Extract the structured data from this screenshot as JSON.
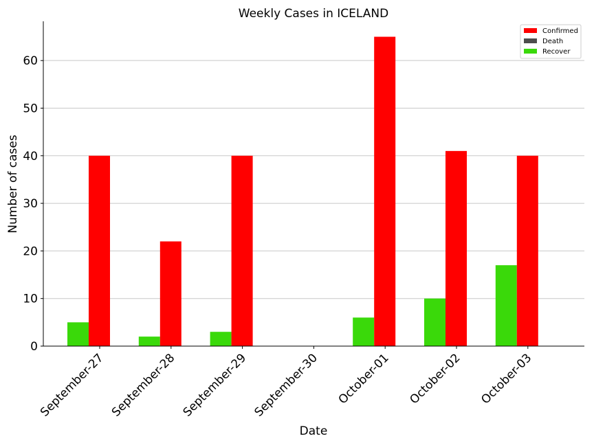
{
  "chart_data": {
    "type": "bar",
    "title": "Weekly Cases in ICELAND",
    "xlabel": "Date",
    "ylabel": "Number of cases",
    "categories": [
      "September-27",
      "September-28",
      "September-29",
      "September-30",
      "October-01",
      "October-02",
      "October-03"
    ],
    "series": [
      {
        "name": "Confirmed",
        "color": "#ff0000",
        "values": [
          40,
          22,
          40,
          0,
          65,
          41,
          40
        ]
      },
      {
        "name": "Death",
        "color": "#4d4d4d",
        "values": [
          0,
          0,
          0,
          0,
          0,
          0,
          0
        ]
      },
      {
        "name": "Recover",
        "color": "#3ad90a",
        "values": [
          5,
          2,
          3,
          0,
          6,
          10,
          17
        ]
      }
    ],
    "yticks": [
      0,
      10,
      20,
      30,
      40,
      50,
      60
    ],
    "ylim": [
      0,
      68.25
    ],
    "grid": "horizontal",
    "legend": "top-right"
  }
}
